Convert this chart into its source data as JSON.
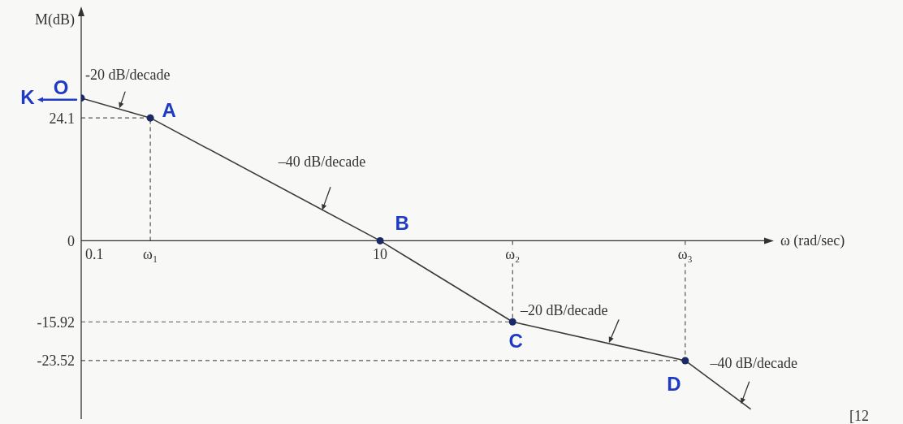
{
  "chart_data": {
    "type": "line",
    "xlabel": "ω (rad/sec)",
    "ylabel": "M(dB)",
    "log": "x",
    "xlim": [
      0.1,
      4000
    ],
    "xticks": [
      0.1,
      {
        "value": 0.29,
        "label": "ω₁"
      },
      10,
      {
        "value": 77,
        "label": "ω₂"
      },
      {
        "value": 1100,
        "label": "ω₃"
      }
    ],
    "ylim": [
      -35,
      45
    ],
    "yticks": [
      24.1,
      0,
      -15.92,
      -23.52
    ],
    "series": [
      {
        "type": "line",
        "color": "#3a3a3a",
        "x": [
          0.1,
          0.29,
          10,
          77,
          1100,
          3000
        ],
        "values": [
          28,
          24.1,
          0,
          -15.92,
          -23.52,
          -33
        ]
      },
      {
        "type": "scatter",
        "color": "#1b2a66",
        "marker": "circle",
        "x": [
          0.1,
          0.29,
          10,
          77,
          1100
        ],
        "values": [
          28,
          24.1,
          0,
          -15.92,
          -23.52
        ]
      }
    ],
    "ref_lines": [
      {
        "axis": "y",
        "value": 24.1,
        "color": "#555555",
        "line_style": "dashed"
      },
      {
        "axis": "y",
        "value": -15.92,
        "color": "#555555",
        "line_style": "dashed"
      },
      {
        "axis": "y",
        "value": -23.52,
        "color": "#555555",
        "line_style": "dashed"
      },
      {
        "axis": "x",
        "value": 0.29,
        "color": "#555555",
        "line_style": "dashed"
      },
      {
        "axis": "x",
        "value": 77,
        "color": "#555555",
        "line_style": "dashed"
      },
      {
        "axis": "x",
        "value": 1100,
        "color": "#555555",
        "line_style": "dashed"
      }
    ],
    "annotations": [
      {
        "text": "-20 dB/decade",
        "x": 0.18,
        "y": 26
      },
      {
        "text": "–40 dB/decade",
        "x": 4.1,
        "y": 6
      },
      {
        "text": "–20 dB/decade",
        "x": 340,
        "y": -20
      },
      {
        "text": "–40 dB/decade",
        "x": 2600,
        "y": -32
      },
      {
        "text": "K",
        "x": 0.1,
        "y": 28
      },
      {
        "text": "O",
        "x": 0.1,
        "y": 28
      },
      {
        "text": "A",
        "x": 0.29,
        "y": 24.1
      },
      {
        "text": "B",
        "x": 10,
        "y": 0
      },
      {
        "text": "C",
        "x": 77,
        "y": -15.92
      },
      {
        "text": "D",
        "x": 1100,
        "y": -23.52
      },
      "[12"
    ]
  }
}
